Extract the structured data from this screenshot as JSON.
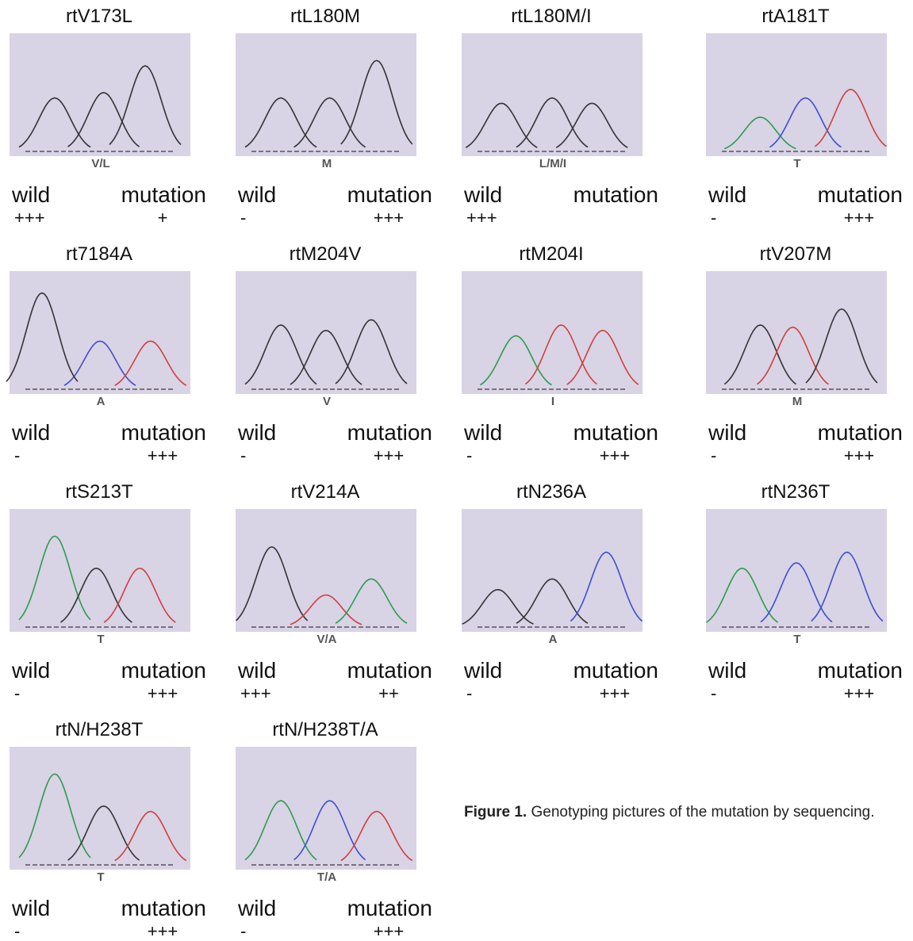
{
  "panels": [
    {
      "title": "rtV173L",
      "base": "V/L",
      "wild": "wild",
      "mutation": "mutation",
      "wild_level": "+++",
      "mutation_level": "+"
    },
    {
      "title": "rtL180M",
      "base": "M",
      "wild": "wild",
      "mutation": "mutation",
      "wild_level": "-",
      "mutation_level": "+++"
    },
    {
      "title": "rtL180M/I",
      "base": "L/M/I",
      "wild": "wild",
      "mutation": "mutation",
      "wild_level": "+++"
    },
    {
      "title": "rtA181T",
      "base": "T",
      "wild": "wild",
      "mutation": "mutation",
      "wild_level": "-",
      "mutation_level": "+++"
    },
    {
      "title": "rt7184A",
      "base": "A",
      "wild": "wild",
      "mutation": "mutation",
      "wild_level": "-",
      "mutation_level": "+++"
    },
    {
      "title": "rtM204V",
      "base": "V",
      "wild": "wild",
      "mutation": "mutation",
      "wild_level": "-",
      "mutation_level": "+++"
    },
    {
      "title": "rtM204I",
      "base": "I",
      "wild": "wild",
      "mutation": "mutation",
      "wild_level": "-",
      "mutation_level": "+++"
    },
    {
      "title": "rtV207M",
      "base": "M",
      "wild": "wild",
      "mutation": "mutation",
      "wild_level": "-",
      "mutation_level": "+++"
    },
    {
      "title": "rtS213T",
      "base": "T",
      "wild": "wild",
      "mutation": "mutation",
      "wild_level": "-",
      "mutation_level": "+++"
    },
    {
      "title": "rtV214A",
      "base": "V/A",
      "wild": "wild",
      "mutation": "mutation",
      "wild_level": "+++",
      "mutation_level": "++"
    },
    {
      "title": "rtN236A",
      "base": "A",
      "wild": "wild",
      "mutation": "mutation",
      "wild_level": "-",
      "mutation_level": "+++"
    },
    {
      "title": "rtN236T",
      "base": "T",
      "wild": "wild",
      "mutation": "mutation",
      "wild_level": "-",
      "mutation_level": "+++"
    },
    {
      "title": "rtN/H238T",
      "base": "T",
      "wild": "wild",
      "mutation": "mutation",
      "wild_level": "-",
      "mutation_level": "+++"
    },
    {
      "title": "rtN/H238T/A",
      "base": "T/A",
      "wild": "wild",
      "mutation": "mutation",
      "wild_level": "-",
      "mutation_level": "+++"
    }
  ],
  "caption": {
    "label": "Figure 1.",
    "text": "Genotyping pictures of the mutation by sequencing."
  }
}
